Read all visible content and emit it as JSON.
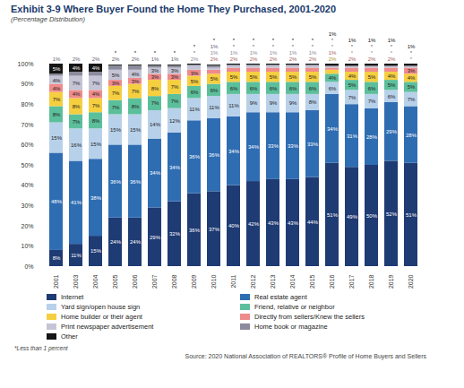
{
  "chart_data": {
    "type": "bar",
    "title": "Exhibit 3-9  Where Buyer Found the Home They Purchased, 2001-2020",
    "subtitle": "(Percentage Distribution)",
    "footnote": "*Less than 1 percent",
    "source": "Source: 2020 National Association of REALTORS® Profile of Home Buyers and Sellers",
    "stacked": true,
    "data_labels": true,
    "grid": false,
    "legend": "bottom",
    "categories": [
      "2001",
      "2003",
      "2004",
      "2005",
      "2006",
      "2007",
      "2008",
      "2009",
      "2010",
      "2011",
      "2012",
      "2013",
      "2014",
      "2015",
      "2016",
      "2017",
      "2018",
      "2019",
      "2020"
    ],
    "ylim": [
      0,
      100
    ],
    "yticks": [
      {
        "value": 0,
        "label": "0%"
      },
      {
        "value": 10,
        "label": "10%"
      },
      {
        "value": 20,
        "label": "20%"
      },
      {
        "value": 30,
        "label": "30%"
      },
      {
        "value": 40,
        "label": "40%"
      },
      {
        "value": 50,
        "label": "50%"
      },
      {
        "value": 60,
        "label": "60%"
      },
      {
        "value": 70,
        "label": "70%"
      },
      {
        "value": 80,
        "label": "80%"
      },
      {
        "value": 90,
        "label": "90%"
      },
      {
        "value": 100,
        "label": "100%"
      }
    ],
    "series": [
      {
        "name": "Internet",
        "color": "#1f3b73",
        "values": [
          8,
          11,
          15,
          24,
          24,
          29,
          32,
          36,
          37,
          40,
          42,
          43,
          43,
          44,
          51,
          49,
          50,
          52,
          51
        ],
        "value_labels": [
          "8%",
          "11%",
          "15%",
          "24%",
          "24%",
          "29%",
          "32%",
          "36%",
          "37%",
          "40%",
          "42%",
          "43%",
          "43%",
          "44%",
          "51%",
          "49%",
          "50%",
          "52%",
          "51%"
        ]
      },
      {
        "name": "Real estate agent",
        "color": "#2f6db3",
        "values": [
          48,
          41,
          38,
          36,
          36,
          34,
          34,
          36,
          36,
          34,
          34,
          33,
          33,
          33,
          34,
          31,
          28,
          29,
          28
        ],
        "value_labels": [
          "48%",
          "41%",
          "38%",
          "36%",
          "36%",
          "34%",
          "34%",
          "36%",
          "36%",
          "34%",
          "34%",
          "33%",
          "33%",
          "33%",
          "34%",
          "31%",
          "28%",
          "29%",
          "28%"
        ]
      },
      {
        "name": "Yard sign/open house sign",
        "color": "#b8d1ea",
        "values": [
          15,
          16,
          15,
          15,
          15,
          14,
          12,
          11,
          11,
          11,
          9,
          9,
          9,
          8,
          6,
          7,
          7,
          6,
          7
        ],
        "value_labels": [
          "15%",
          "16%",
          "15%",
          "15%",
          "15%",
          "14%",
          "12%",
          "11%",
          "11%",
          "11%",
          "9%",
          "9%",
          "9%",
          "8%",
          "6%",
          "7%",
          "7%",
          "6%",
          "7%"
        ]
      },
      {
        "name": "Friend, relative or neighbor",
        "color": "#5cbf9b",
        "values": [
          8,
          7,
          8,
          7,
          8,
          7,
          7,
          6,
          6,
          6,
          6,
          6,
          6,
          6,
          4,
          5,
          6,
          5,
          5
        ],
        "value_labels": [
          "8%",
          "7%",
          "8%",
          "7%",
          "8%",
          "7%",
          "7%",
          "6%",
          "6%",
          "6%",
          "6%",
          "6%",
          "6%",
          "6%",
          "4%",
          "5%",
          "6%",
          "5%",
          "5%"
        ]
      },
      {
        "name": "Home builder or their agent",
        "color": "#f5cf3f",
        "values": [
          7,
          8,
          7,
          7,
          7,
          8,
          7,
          5,
          5,
          5,
          5,
          5,
          5,
          5,
          2,
          4,
          5,
          4,
          4
        ],
        "value_labels": [
          "7%",
          "8%",
          "7%",
          "7%",
          "7%",
          "8%",
          "7%",
          "5%",
          "5%",
          "5%",
          "5%",
          "5%",
          "5%",
          "5%",
          "2%",
          "4%",
          "5%",
          "4%",
          "4%"
        ]
      },
      {
        "name": "Directly from sellers/Knew the sellers",
        "color": "#ef8b8b",
        "values": [
          4,
          4,
          4,
          3,
          3,
          3,
          3,
          3,
          2,
          2,
          2,
          2,
          2,
          2,
          1,
          2,
          2,
          2,
          3
        ],
        "value_labels": [
          "4%",
          "4%",
          "4%",
          "3%",
          "3%",
          "3%",
          "3%",
          "3%",
          "2%",
          "2%",
          "2%",
          "2%",
          "2%",
          "2%",
          "1%",
          "2%",
          "2%",
          "2%",
          "3%"
        ]
      },
      {
        "name": "Print newspaper advertisement",
        "color": "#c4c4d6",
        "values": [
          4,
          7,
          7,
          5,
          4,
          3,
          3,
          2,
          1,
          1,
          1,
          1,
          1,
          1,
          0.5,
          0.5,
          0.5,
          0.5,
          0.5
        ],
        "value_labels": [
          "4%",
          "7%",
          "7%",
          "5%",
          "4%",
          "3%",
          "3%",
          "2%",
          "1%",
          "1%",
          "1%",
          "1%",
          "1%",
          "1%",
          "*",
          "*",
          "*",
          "*",
          "*"
        ]
      },
      {
        "name": "Home book or magazine",
        "color": "#8c8c9e",
        "values": [
          1,
          2,
          2,
          2,
          2,
          1,
          1,
          0.5,
          1,
          0.5,
          0.5,
          0.5,
          0.5,
          0.5,
          0.5,
          0.5,
          0.5,
          0.5,
          0.5
        ],
        "value_labels": [
          "1%",
          "2%",
          "2%",
          "2%",
          "2%",
          "1%",
          "1%",
          "*",
          "1%",
          "*",
          "*",
          "*",
          "*",
          "*",
          "*",
          "*",
          "*",
          "*",
          "*"
        ]
      },
      {
        "name": "Other",
        "color": "#151515",
        "values": [
          5,
          4,
          4,
          0.5,
          0.5,
          0.5,
          0.5,
          0.5,
          0.5,
          0.5,
          0.5,
          0.5,
          0.5,
          0.5,
          1,
          1,
          1,
          1,
          1
        ],
        "value_labels": [
          "5%",
          "4%",
          "4%",
          "*",
          "*",
          "*",
          "*",
          "*",
          "*",
          "*",
          "*",
          "*",
          "*",
          "*",
          "1%",
          "1%",
          "1%",
          "1%",
          "1%"
        ]
      }
    ]
  }
}
